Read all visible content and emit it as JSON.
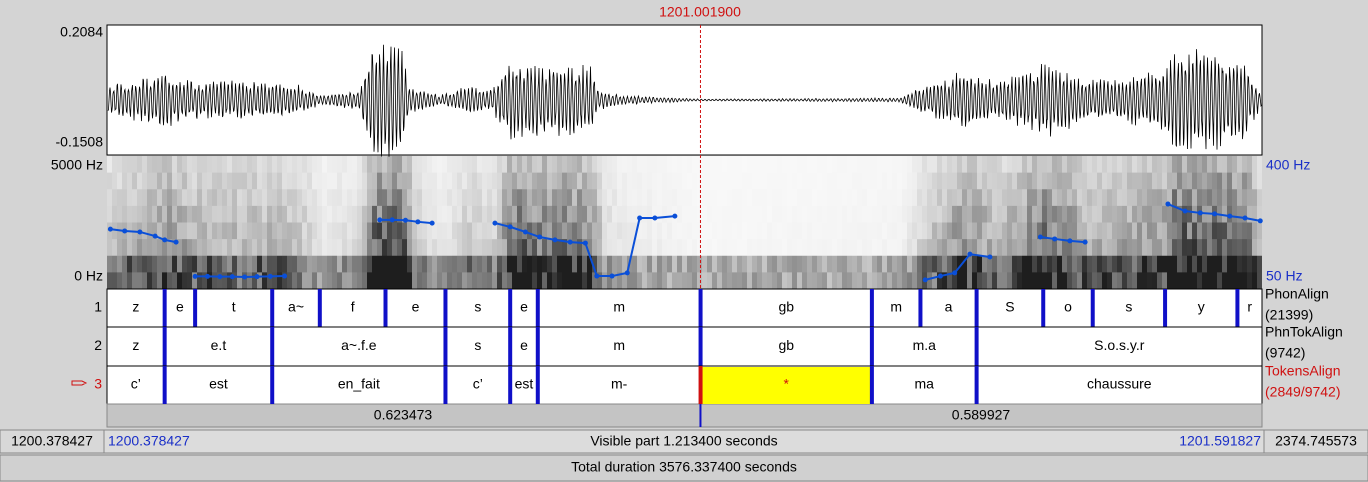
{
  "cursor": {
    "value": 1201.0019,
    "label": "1201.001900"
  },
  "waveform": {
    "max": 0.2084,
    "min": -0.1508
  },
  "spectrogram": {
    "max": {
      "value": 5000,
      "label": "5000 Hz"
    },
    "min": {
      "value": 0,
      "label": "0 Hz"
    }
  },
  "pitch": {
    "color": "#0a4fd8",
    "ylim": [
      {
        "value": 50,
        "label": "50 Hz"
      },
      {
        "value": 400,
        "label": "400 Hz"
      }
    ],
    "segments": [
      {
        "x": [
          1200.382,
          1200.397,
          1200.413,
          1200.429,
          1200.439,
          1200.451
        ],
        "values": [
          201,
          195,
          192,
          179,
          167,
          160
        ]
      },
      {
        "x": [
          1200.471,
          1200.484,
          1200.497,
          1200.51,
          1200.523,
          1200.536,
          1200.55,
          1200.565
        ],
        "values": [
          52,
          52,
          51,
          51,
          50,
          51,
          52,
          53
        ]
      },
      {
        "x": [
          1200.665,
          1200.678,
          1200.692,
          1200.705,
          1200.72
        ],
        "values": [
          230,
          230,
          229,
          224,
          220
        ]
      },
      {
        "x": [
          1200.786,
          1200.802,
          1200.818,
          1200.833,
          1200.849,
          1200.865,
          1200.881,
          1200.893,
          1200.909,
          1200.925,
          1200.938,
          1200.954,
          1200.975
        ],
        "values": [
          220,
          208,
          192,
          176,
          167,
          160,
          157,
          53,
          53,
          63,
          236,
          236,
          242
        ]
      },
      {
        "x": [
          1201.238,
          1201.254,
          1201.269,
          1201.285,
          1201.306
        ],
        "values": [
          41,
          53,
          63,
          122,
          113
        ]
      },
      {
        "x": [
          1201.359,
          1201.374,
          1201.39,
          1201.406
        ],
        "values": [
          176,
          170,
          164,
          160
        ]
      },
      {
        "x": [
          1201.493,
          1201.511,
          1201.527,
          1201.542,
          1201.558,
          1201.574,
          1201.59
        ],
        "values": [
          280,
          258,
          252,
          249,
          242,
          236,
          227
        ]
      }
    ]
  },
  "tiers": [
    {
      "number": "1",
      "name": "PhonAlign",
      "count": "(21399)",
      "boundaries": [
        1200.439,
        1200.471,
        1200.552,
        1200.602,
        1200.671,
        1200.734,
        1200.802,
        1200.831,
        1201.002,
        1201.182,
        1201.233,
        1201.292,
        1201.362,
        1201.414,
        1201.49,
        1201.566
      ],
      "labels": [
        "z",
        "e",
        "t",
        "a~",
        "f",
        "e",
        "s",
        "e",
        "m",
        "gb",
        "m",
        "a",
        "S",
        "o",
        "s",
        "y",
        "r"
      ]
    },
    {
      "number": "2",
      "name": "PhnTokAlign",
      "count": "(9742)",
      "boundaries": [
        1200.439,
        1200.552,
        1200.734,
        1200.802,
        1200.831,
        1201.002,
        1201.182,
        1201.292
      ],
      "labels": [
        "z",
        "e.t",
        "a~.f.e",
        "s",
        "e",
        "m",
        "gb",
        "m.a",
        "S.o.s.y.r"
      ]
    },
    {
      "number": "3",
      "name": "TokensAlign",
      "count": "(2849/9742)",
      "active": true,
      "selected_interval": 6,
      "boundaries": [
        1200.439,
        1200.552,
        1200.734,
        1200.802,
        1200.831,
        1201.002,
        1201.182,
        1201.292
      ],
      "labels": [
        "c’",
        "est",
        "en_fait",
        "c’",
        "est",
        "m-",
        "*",
        "ma",
        "chaussure"
      ]
    }
  ],
  "xlim": [
    1200.378427,
    1201.591827
  ],
  "before_cursor": 0.623473,
  "after_cursor": 0.589927,
  "window_end": "2374.745573",
  "visible": "Visible part 1.213400 seconds",
  "total": "Total duration 3576.337400 seconds"
}
